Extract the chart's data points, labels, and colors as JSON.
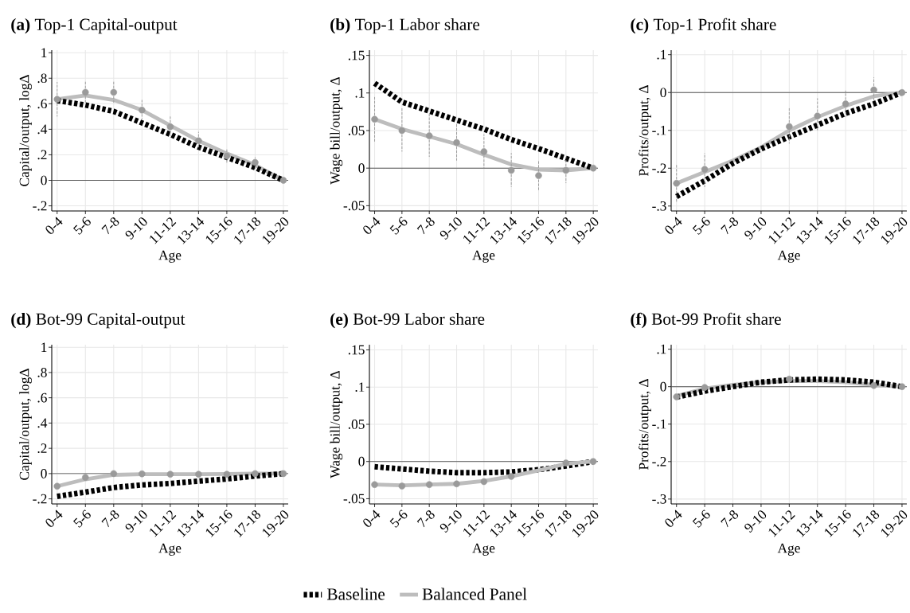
{
  "chart_data": [
    {
      "type": "line",
      "title": "**(a)** Top-1 Capital-output",
      "xlabel": "Age",
      "ylabel": "Capital/output, logΔ",
      "categories": [
        "0-4",
        "5-6",
        "7-8",
        "9-10",
        "11-12",
        "13-14",
        "15-16",
        "17-18",
        "19-20"
      ],
      "ylim": [
        -0.24,
        1.02
      ],
      "yticks": [
        {
          "value": -0.2,
          "label": "-.2"
        },
        0,
        {
          "value": 0.2,
          "label": ".2"
        },
        {
          "value": 0.4,
          "label": ".4"
        },
        {
          "value": 0.6,
          "label": ".6"
        },
        {
          "value": 0.8,
          "label": ".8"
        },
        1
      ],
      "grid": true,
      "ref_lines": [
        {
          "axis": "y",
          "value": 0,
          "color": "#555555"
        }
      ],
      "series": [
        {
          "type": "scatter",
          "color": "#9a9a9a",
          "marker": "circle",
          "values": [
            0.635,
            0.69,
            0.69,
            0.55,
            0.42,
            0.31,
            0.19,
            0.14,
            0.0
          ],
          "errors": [
            [
              0.5,
              0.77
            ],
            [
              0.6,
              0.78
            ],
            [
              0.6,
              0.78
            ],
            [
              0.48,
              0.63
            ],
            [
              0.35,
              0.5
            ],
            [
              0.25,
              0.38
            ],
            [
              0.13,
              0.25
            ],
            [
              0.09,
              0.18
            ],
            null
          ]
        },
        {
          "type": "line",
          "color": "#bdbdbd",
          "line_style": "solid",
          "values": [
            0.635,
            0.665,
            0.63,
            0.55,
            0.43,
            0.31,
            0.21,
            0.12,
            0.0
          ]
        },
        {
          "type": "line",
          "color": "#000000",
          "line_style": "dashed",
          "values": [
            0.625,
            0.59,
            0.54,
            0.45,
            0.36,
            0.26,
            0.18,
            0.1,
            0.0
          ]
        }
      ]
    },
    {
      "type": "line",
      "title": "**(b)** Top-1 Labor share",
      "xlabel": "Age",
      "ylabel": "Wage bill/output, Δ",
      "categories": [
        "0-4",
        "5-6",
        "7-8",
        "9-10",
        "11-12",
        "13-14",
        "15-16",
        "17-18",
        "19-20"
      ],
      "ylim": [
        -0.057,
        0.157
      ],
      "yticks": [
        {
          "value": -0.05,
          "label": "-.05"
        },
        0,
        {
          "value": 0.05,
          "label": ".05"
        },
        {
          "value": 0.1,
          "label": ".1"
        },
        {
          "value": 0.15,
          "label": ".15"
        }
      ],
      "grid": true,
      "ref_lines": [
        {
          "axis": "y",
          "value": 0,
          "color": "#555555"
        }
      ],
      "series": [
        {
          "type": "scatter",
          "color": "#9a9a9a",
          "marker": "circle",
          "values": [
            0.065,
            0.05,
            0.043,
            0.034,
            0.022,
            -0.003,
            -0.01,
            -0.003,
            0.0
          ],
          "errors": [
            [
              0.035,
              0.095
            ],
            [
              0.022,
              0.08
            ],
            [
              0.015,
              0.072
            ],
            [
              0.01,
              0.06
            ],
            [
              0.0,
              0.045
            ],
            [
              -0.025,
              0.02
            ],
            [
              -0.03,
              0.01
            ],
            [
              -0.02,
              0.015
            ],
            null
          ]
        },
        {
          "type": "line",
          "color": "#bdbdbd",
          "line_style": "solid",
          "values": [
            0.065,
            0.052,
            0.042,
            0.032,
            0.018,
            0.005,
            -0.002,
            -0.003,
            0.0
          ]
        },
        {
          "type": "line",
          "color": "#000000",
          "line_style": "dashed",
          "values": [
            0.113,
            0.088,
            0.076,
            0.064,
            0.052,
            0.038,
            0.026,
            0.013,
            0.0
          ]
        }
      ]
    },
    {
      "type": "line",
      "title": "**(c)** Top-1 Profit share",
      "xlabel": "Age",
      "ylabel": "Profits/output, Δ",
      "categories": [
        "0-4",
        "5-6",
        "7-8",
        "9-10",
        "11-12",
        "13-14",
        "15-16",
        "17-18",
        "19-20"
      ],
      "ylim": [
        -0.313,
        0.112
      ],
      "yticks": [
        {
          "value": -0.3,
          "label": "-.3"
        },
        {
          "value": -0.2,
          "label": "-.2"
        },
        {
          "value": -0.1,
          "label": "-.1"
        },
        0,
        {
          "value": 0.1,
          "label": ".1"
        }
      ],
      "grid": true,
      "ref_lines": [
        {
          "axis": "y",
          "value": 0,
          "color": "#555555"
        }
      ],
      "series": [
        {
          "type": "scatter",
          "color": "#9a9a9a",
          "marker": "circle",
          "values": [
            -0.24,
            -0.203,
            null,
            null,
            -0.09,
            -0.062,
            -0.03,
            0.007,
            0.0
          ],
          "errors": [
            [
              -0.29,
              -0.19
            ],
            [
              -0.25,
              -0.16
            ],
            null,
            null,
            [
              -0.135,
              -0.04
            ],
            [
              -0.1,
              -0.015
            ],
            [
              -0.065,
              0.005
            ],
            [
              -0.02,
              0.04
            ],
            null
          ]
        },
        {
          "type": "line",
          "color": "#bdbdbd",
          "line_style": "solid",
          "values": [
            -0.24,
            -0.21,
            -0.18,
            -0.145,
            -0.1,
            -0.065,
            -0.035,
            -0.01,
            0.0
          ]
        },
        {
          "type": "line",
          "color": "#000000",
          "line_style": "dashed",
          "values": [
            -0.275,
            -0.233,
            -0.187,
            -0.149,
            -0.117,
            -0.086,
            -0.055,
            -0.03,
            0.0
          ]
        }
      ]
    },
    {
      "type": "line",
      "title": "**(d)** Bot-99 Capital-output",
      "xlabel": "Age",
      "ylabel": "Capital/output, logΔ",
      "categories": [
        "0-4",
        "5-6",
        "7-8",
        "9-10",
        "11-12",
        "13-14",
        "15-16",
        "17-18",
        "19-20"
      ],
      "ylim": [
        -0.24,
        1.02
      ],
      "yticks": [
        {
          "value": -0.2,
          "label": "-.2"
        },
        0,
        {
          "value": 0.2,
          "label": ".2"
        },
        {
          "value": 0.4,
          "label": ".4"
        },
        {
          "value": 0.6,
          "label": ".6"
        },
        {
          "value": 0.8,
          "label": ".8"
        },
        1
      ],
      "grid": true,
      "ref_lines": [
        {
          "axis": "y",
          "value": 0,
          "color": "#555555"
        }
      ],
      "series": [
        {
          "type": "scatter",
          "color": "#9a9a9a",
          "marker": "circle",
          "values": [
            -0.1,
            -0.03,
            0.0,
            -0.002,
            -0.005,
            -0.005,
            -0.005,
            0.0,
            0.0
          ]
        },
        {
          "type": "line",
          "color": "#bdbdbd",
          "line_style": "solid",
          "values": [
            -0.1,
            -0.045,
            -0.01,
            -0.005,
            -0.005,
            -0.005,
            -0.003,
            0.0,
            0.0
          ]
        },
        {
          "type": "line",
          "color": "#000000",
          "line_style": "dashed",
          "values": [
            -0.18,
            -0.147,
            -0.11,
            -0.09,
            -0.078,
            -0.06,
            -0.042,
            -0.02,
            0.0
          ]
        }
      ]
    },
    {
      "type": "line",
      "title": "**(e)** Bot-99 Labor share",
      "xlabel": "Age",
      "ylabel": "Wage bill/output, Δ",
      "legend": "bottom",
      "categories": [
        "0-4",
        "5-6",
        "7-8",
        "9-10",
        "11-12",
        "13-14",
        "15-16",
        "17-18",
        "19-20"
      ],
      "ylim": [
        -0.057,
        0.157
      ],
      "yticks": [
        {
          "value": -0.05,
          "label": "-.05"
        },
        0,
        {
          "value": 0.05,
          "label": ".05"
        },
        {
          "value": 0.1,
          "label": ".1"
        },
        {
          "value": 0.15,
          "label": ".15"
        }
      ],
      "grid": true,
      "ref_lines": [
        {
          "axis": "y",
          "value": 0,
          "color": "#555555"
        }
      ],
      "series": [
        {
          "type": "scatter",
          "color": "#9a9a9a",
          "marker": "circle",
          "values": [
            -0.031,
            -0.033,
            -0.031,
            -0.03,
            -0.027,
            -0.02,
            null,
            -0.002,
            0.0
          ]
        },
        {
          "type": "line",
          "name": "Baseline",
          "color": "#000000",
          "line_style": "dashed",
          "values": [
            -0.007,
            -0.01,
            -0.013,
            -0.015,
            -0.015,
            -0.014,
            -0.011,
            -0.006,
            0.0
          ]
        },
        {
          "type": "line",
          "name": "Balanced Panel",
          "color": "#bdbdbd",
          "line_style": "solid",
          "values": [
            -0.031,
            -0.032,
            -0.031,
            -0.03,
            -0.026,
            -0.02,
            -0.012,
            -0.003,
            0.0
          ]
        }
      ]
    },
    {
      "type": "line",
      "title": "**(f)** Bot-99 Profit share",
      "xlabel": "Age",
      "ylabel": "Profits/output, Δ",
      "categories": [
        "0-4",
        "5-6",
        "7-8",
        "9-10",
        "11-12",
        "13-14",
        "15-16",
        "17-18",
        "19-20"
      ],
      "ylim": [
        -0.313,
        0.112
      ],
      "yticks": [
        {
          "value": -0.3,
          "label": "-.3"
        },
        {
          "value": -0.2,
          "label": "-.2"
        },
        {
          "value": -0.1,
          "label": "-.1"
        },
        0,
        {
          "value": 0.1,
          "label": ".1"
        }
      ],
      "grid": true,
      "ref_lines": [
        {
          "axis": "y",
          "value": 0,
          "color": "#555555"
        }
      ],
      "series": [
        {
          "type": "scatter",
          "color": "#9a9a9a",
          "marker": "circle",
          "values": [
            -0.027,
            -0.002,
            null,
            null,
            0.02,
            null,
            null,
            0.003,
            0.0
          ]
        },
        {
          "type": "line",
          "color": "#bdbdbd",
          "line_style": "solid",
          "values": [
            -0.025,
            -0.005,
            0.005,
            0.012,
            0.015,
            0.015,
            0.012,
            0.005,
            0.0
          ]
        },
        {
          "type": "line",
          "color": "#000000",
          "line_style": "dashed",
          "values": [
            -0.028,
            -0.012,
            0.0,
            0.012,
            0.018,
            0.02,
            0.018,
            0.012,
            0.0
          ]
        }
      ]
    }
  ]
}
